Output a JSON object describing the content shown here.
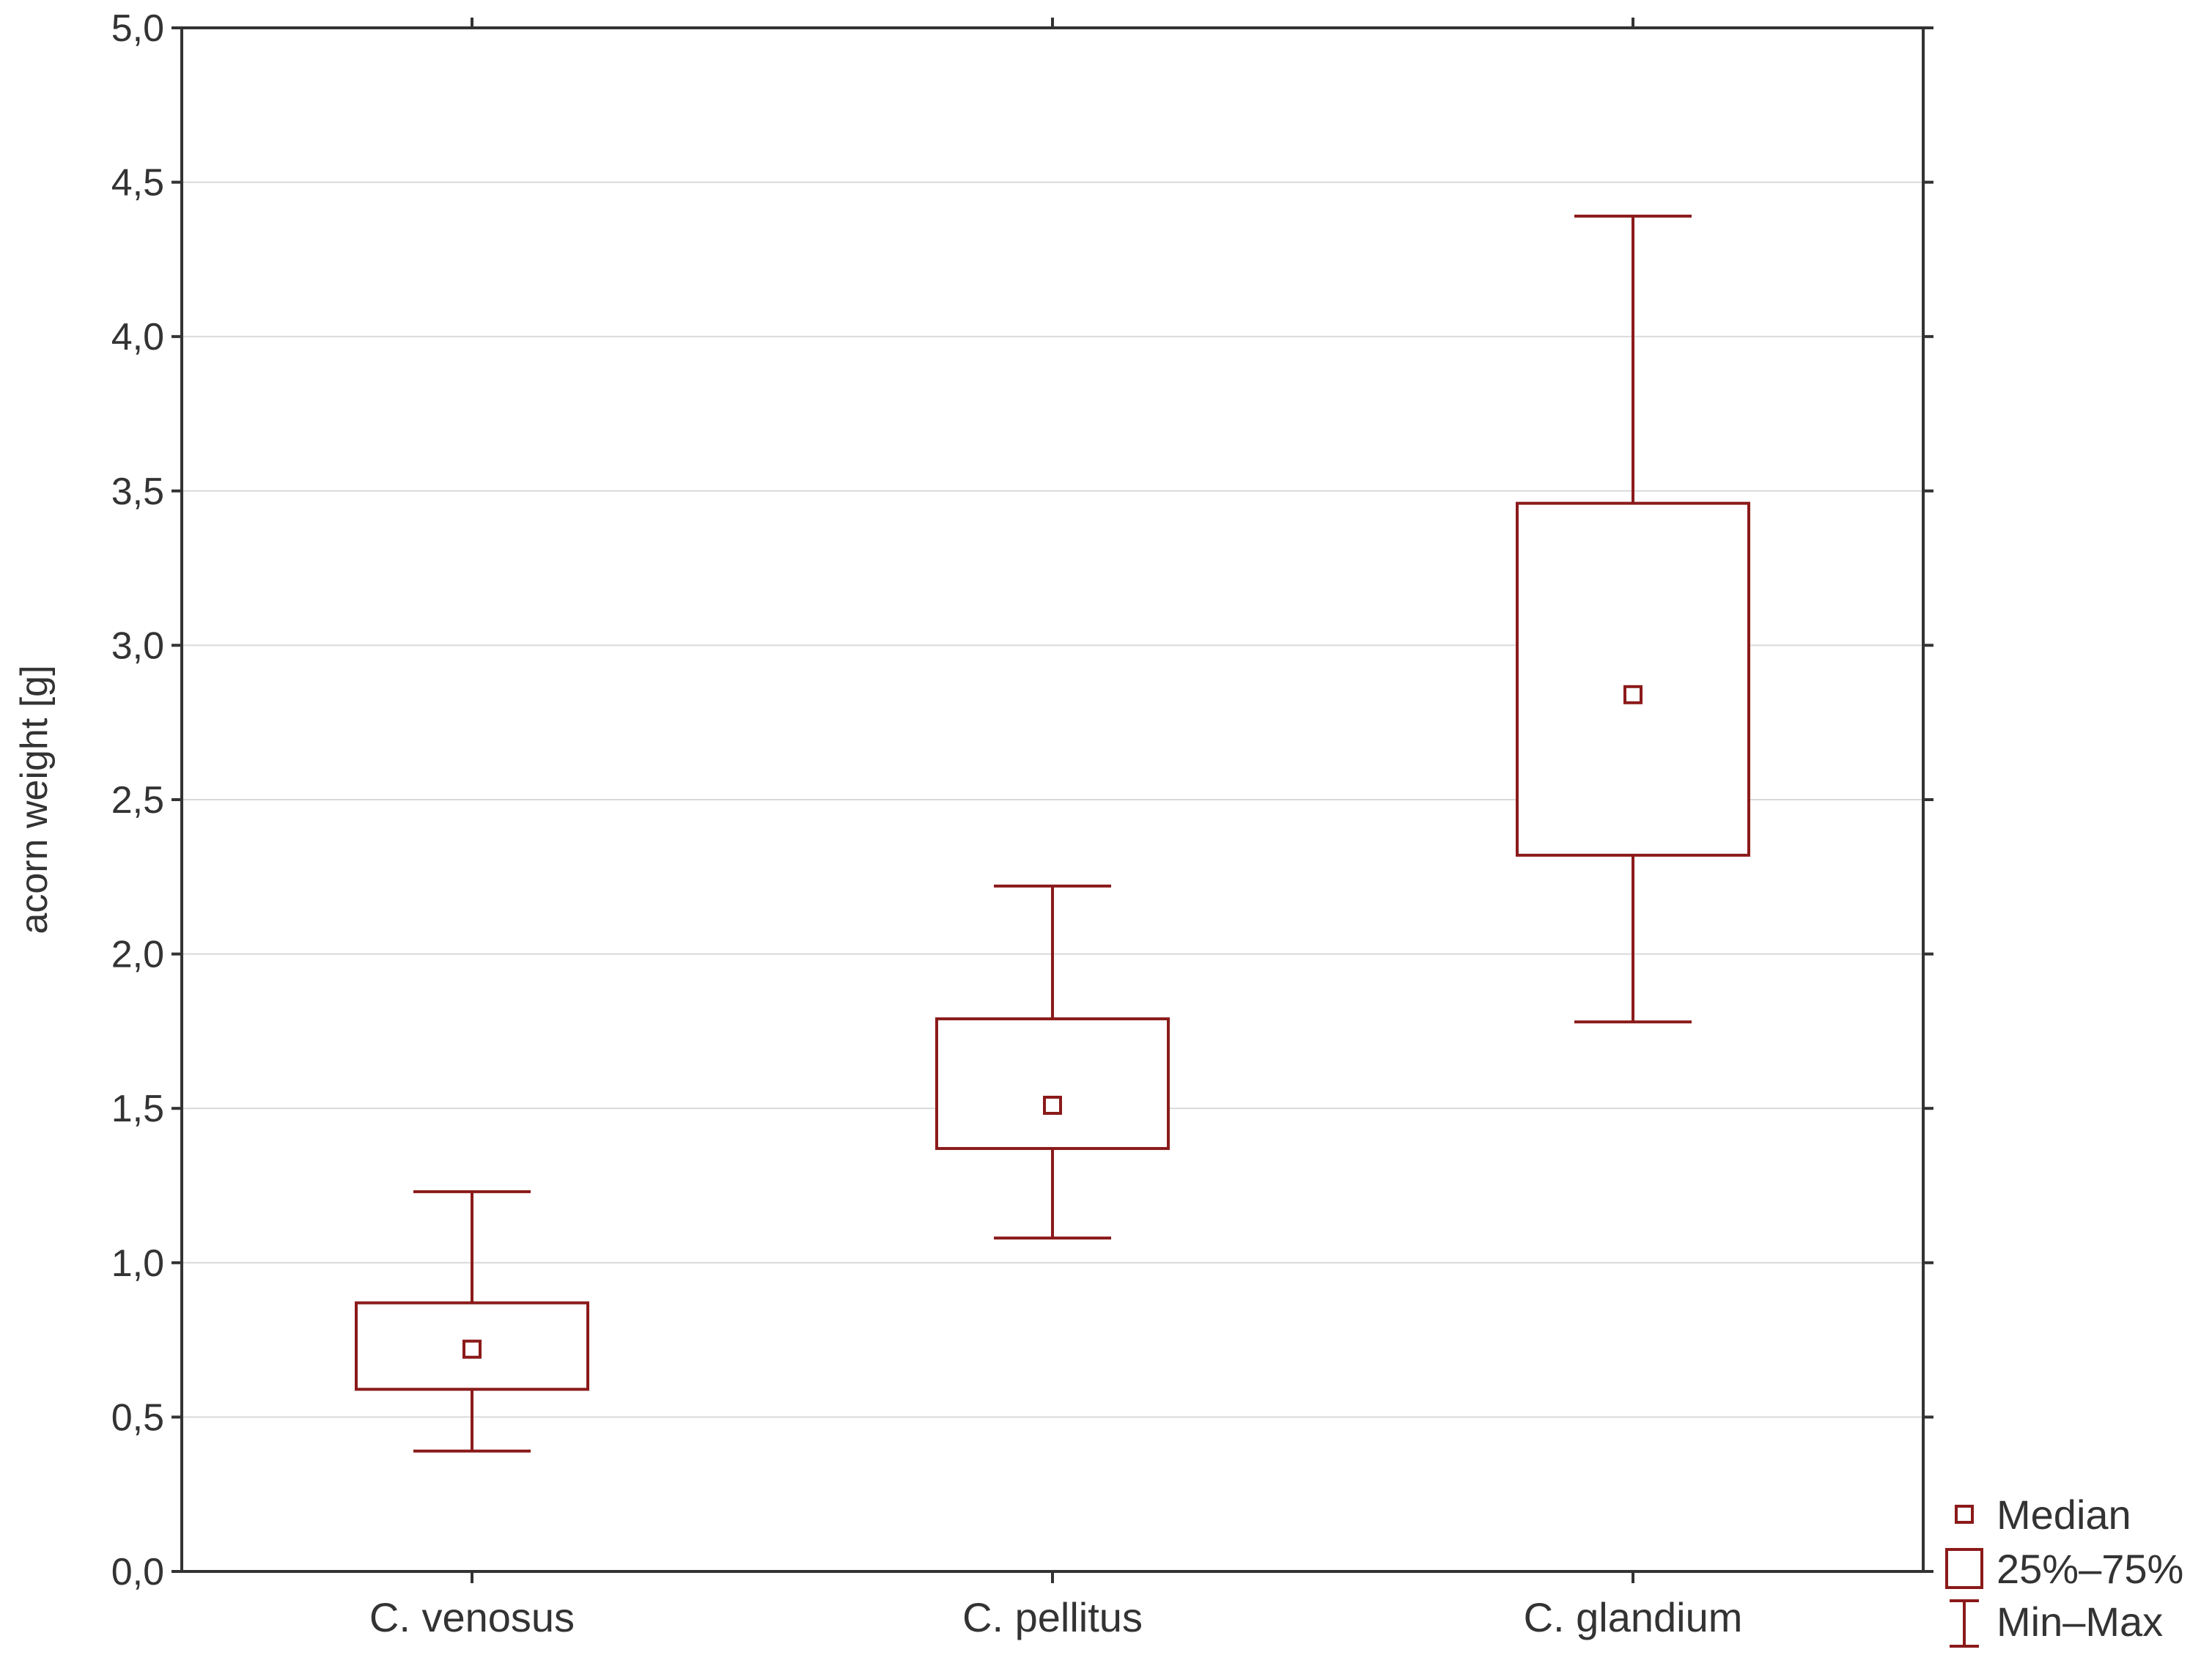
{
  "chart_data": {
    "type": "box",
    "title": "",
    "xlabel": "",
    "ylabel": "acorn weight [g]",
    "ylim": [
      0.0,
      5.0
    ],
    "y_ticks": [
      "0,0",
      "0,5",
      "1,0",
      "1,5",
      "2,0",
      "2,5",
      "3,0",
      "3,5",
      "4,0",
      "4,5",
      "5,0"
    ],
    "categories": [
      "C. venosus",
      "C. pellitus",
      "C. glandium"
    ],
    "series": [
      {
        "name": "C. venosus",
        "min": 0.39,
        "q1": 0.59,
        "median": 0.72,
        "q3": 0.87,
        "max": 1.23
      },
      {
        "name": "C. pellitus",
        "min": 1.08,
        "q1": 1.37,
        "median": 1.51,
        "q3": 1.79,
        "max": 2.22
      },
      {
        "name": "C. glandium",
        "min": 1.78,
        "q1": 2.32,
        "median": 2.84,
        "q3": 3.46,
        "max": 4.39
      }
    ],
    "legend": [
      {
        "symbol": "median",
        "label": "Median"
      },
      {
        "symbol": "box",
        "label": "25%–75%"
      },
      {
        "symbol": "whisker",
        "label": "Min–Max"
      }
    ],
    "grid": true,
    "legend_position": "bottom-right",
    "colors": {
      "box": "#8b1a1a",
      "axis": "#333333",
      "grid": "#d9d9d9"
    }
  }
}
